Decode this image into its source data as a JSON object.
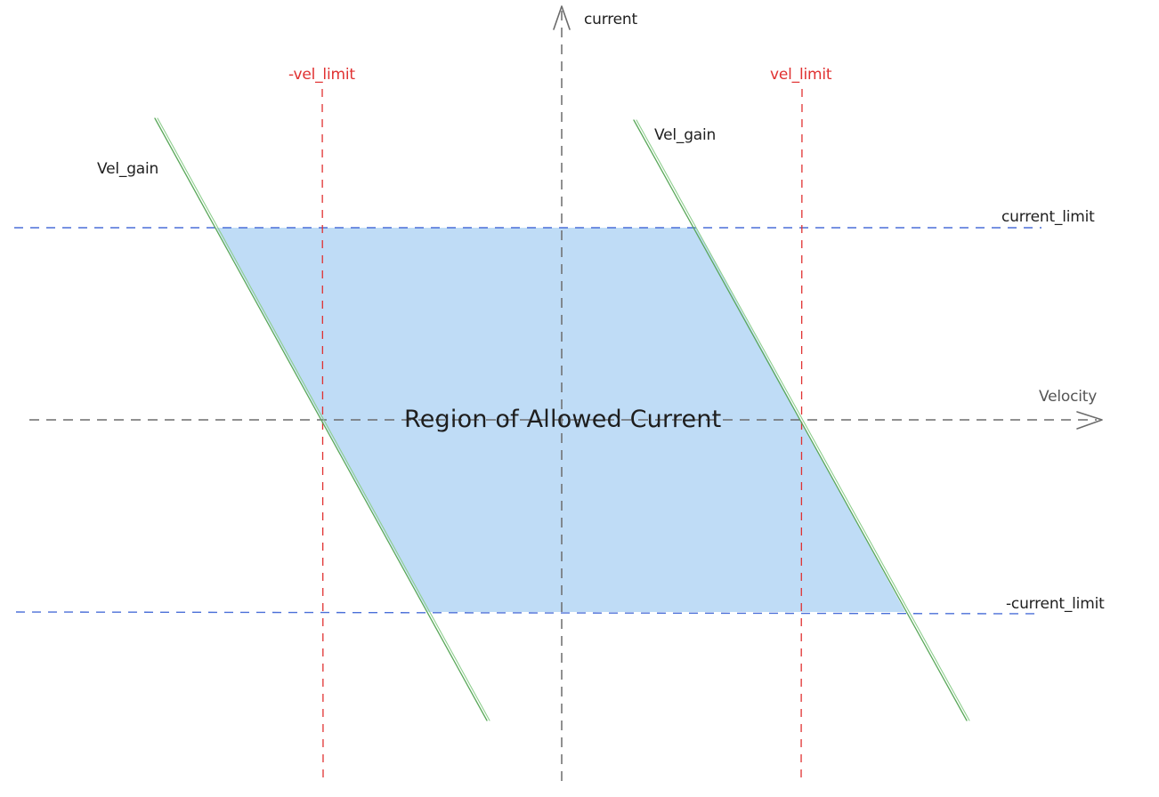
{
  "colors": {
    "region_fill": "#bfdcf6",
    "current_limit_line": "#4a6fd8",
    "vel_limit_line": "#e03131",
    "vel_gain_line": "#5aa85a",
    "axis_line": "#6b6b6b"
  },
  "labels": {
    "current_axis": "current",
    "velocity_axis": "Velocity",
    "neg_vel_limit": "-vel_limit",
    "vel_limit": "vel_limit",
    "vel_gain_left": "Vel_gain",
    "vel_gain_right": "Vel_gain",
    "current_limit": "current_limit",
    "neg_current_limit": "-current_limit",
    "region": "Region of Allowed Current"
  },
  "icons": {
    "current_axis_arrow": "arrow-up-icon",
    "velocity_axis_arrow": "arrow-right-icon"
  }
}
